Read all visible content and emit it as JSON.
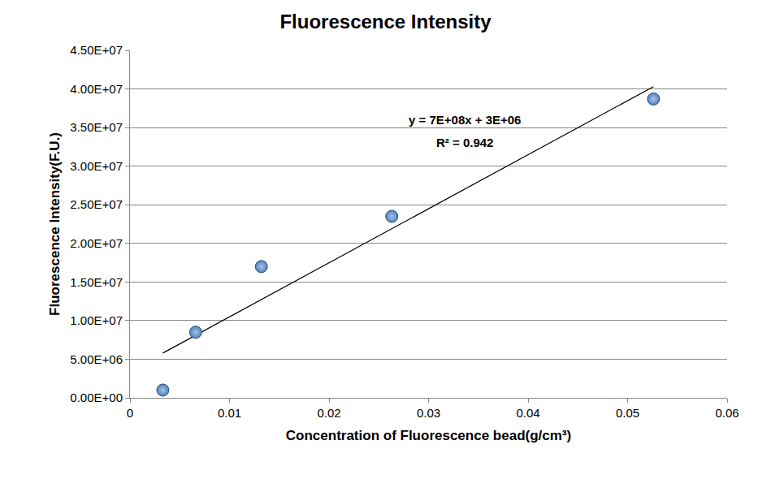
{
  "chart_data": {
    "type": "scatter",
    "title": "Fluorescence Intensity",
    "x_label": "Concentration of Fluorescence bead(g/cm³)",
    "y_label": "Fluorescence Intensity(F.U.)",
    "x": [
      0.0033,
      0.0066,
      0.0132,
      0.0263,
      0.0526
    ],
    "values": [
      1000000,
      8500000,
      17000000,
      23500000,
      38700000
    ],
    "color": "#4f81bd",
    "marker": "circle",
    "trendline": {
      "x": [
        0.0033,
        0.0526
      ],
      "values": [
        5800000,
        40300000
      ],
      "color": "#000000",
      "line_style": "solid"
    },
    "annotations": [
      "y = 7E+08x + 3E+06",
      "R² = 0.942"
    ],
    "xlim": [
      0,
      0.06
    ],
    "xticks": [
      0,
      0.01,
      0.02,
      0.03,
      0.04,
      0.05,
      0.06
    ],
    "ylim": [
      0,
      45000000
    ],
    "yticks": [
      {
        "value": 0,
        "label": "0.00E+00"
      },
      {
        "value": 5000000,
        "label": "5.00E+06"
      },
      {
        "value": 10000000,
        "label": "1.00E+07"
      },
      {
        "value": 15000000,
        "label": "1.50E+07"
      },
      {
        "value": 20000000,
        "label": "2.00E+07"
      },
      {
        "value": 25000000,
        "label": "2.50E+07"
      },
      {
        "value": 30000000,
        "label": "3.00E+07"
      },
      {
        "value": 35000000,
        "label": "3.50E+07"
      },
      {
        "value": 40000000,
        "label": "4.00E+07"
      },
      {
        "value": 45000000,
        "label": "4.50E+07"
      }
    ],
    "grid": true
  }
}
